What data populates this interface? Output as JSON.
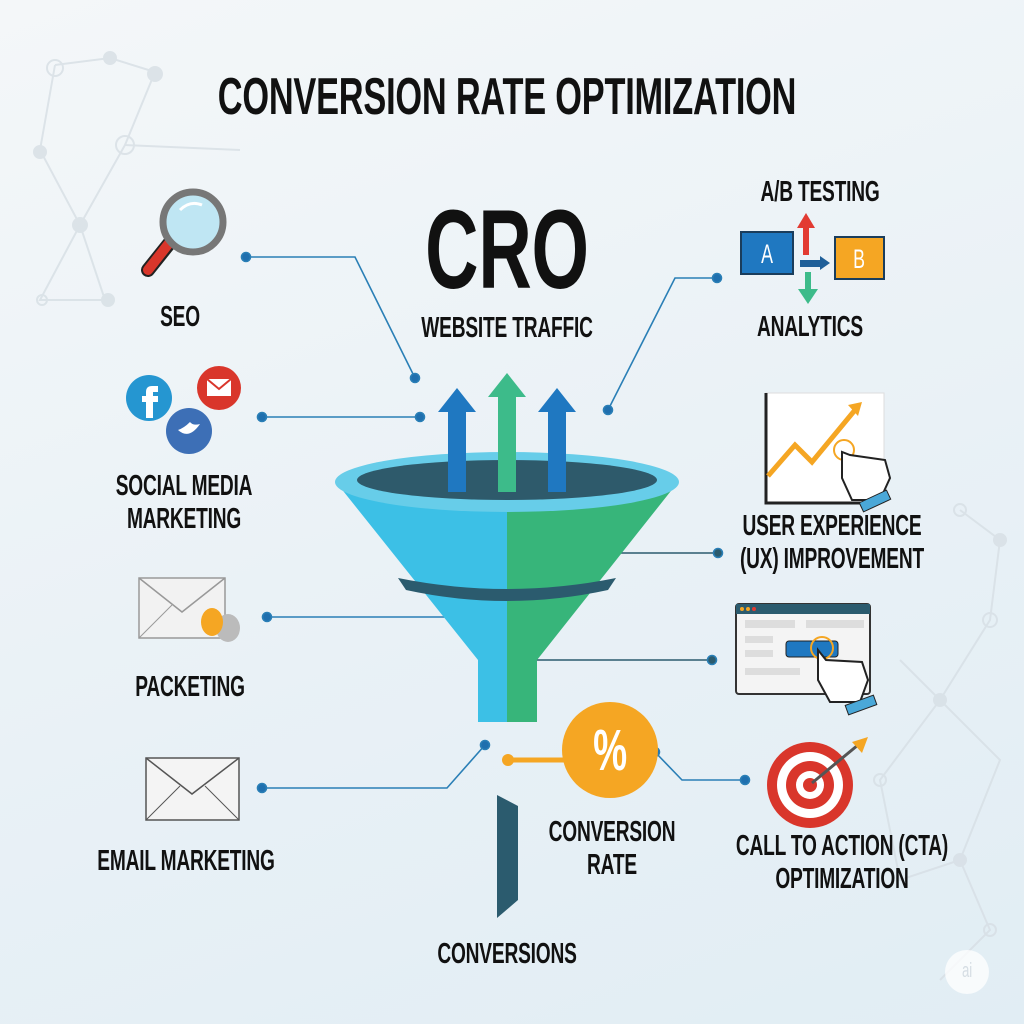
{
  "title": "CONVERSION RATE OPTIMIZATION",
  "center": {
    "acronym": "CRO",
    "subtitle": "WEBSITE TRAFFIC",
    "bottom_label": "CONVERSIONS"
  },
  "left_items": [
    {
      "label": "SEO",
      "icon": "magnifier-icon"
    },
    {
      "label_line1": "SOCIAL MEDIA",
      "label_line2": "MARKETING",
      "icon": "social-media-icons"
    },
    {
      "label": "PACKETING",
      "icon": "envelope-chat-icon"
    },
    {
      "label": "EMAIL MARKETING",
      "icon": "envelope-icon"
    }
  ],
  "right_items": [
    {
      "label_top": "A/B TESTING",
      "label": "ANALYTICS",
      "icon": "ab-test-icon",
      "box_a": "A",
      "box_b": "B"
    },
    {
      "label_line1": "USER EXPERIENCE",
      "label_line2": "(UX) IMPROVEMENT",
      "icon": "growth-chart-hand-icon"
    },
    {
      "icon": "browser-click-icon"
    },
    {
      "label_line1": "CALL TO ACTION (CTA)",
      "label_line2": "OPTIMIZATION",
      "icon": "target-icon"
    }
  ],
  "conversion_rate": {
    "symbol": "%",
    "label_line1": "CONVERSION",
    "label_line2": "RATE"
  },
  "watermark": "ai",
  "colors": {
    "blue": "#1f78c1",
    "green": "#3dbb8a",
    "funnel_blue": "#3cc0e6",
    "funnel_green": "#37b57a",
    "orange": "#f5a623",
    "dark": "#2b5b6e",
    "line": "#2a7fb6"
  }
}
